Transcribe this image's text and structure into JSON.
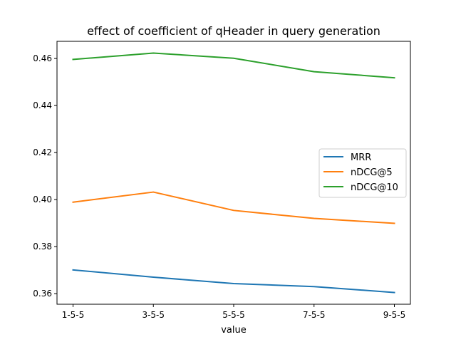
{
  "chart_data": {
    "type": "line",
    "title": "effect of coefficient of qHeader in query generation",
    "xlabel": "value",
    "ylabel": "",
    "categories": [
      "1-5-5",
      "3-5-5",
      "5-5-5",
      "7-5-5",
      "9-5-5"
    ],
    "ylim": [
      0.3555,
      0.4673
    ],
    "yticks": [
      0.36,
      0.38,
      0.4,
      0.42,
      0.44,
      0.46
    ],
    "ytick_labels": [
      "0.36",
      "0.38",
      "0.40",
      "0.42",
      "0.44",
      "0.46"
    ],
    "grid": false,
    "legend_position": "center-right",
    "series": [
      {
        "name": "MRR",
        "color": "#1f77b4",
        "values": [
          0.3701,
          0.367,
          0.3643,
          0.363,
          0.3605
        ]
      },
      {
        "name": "nDCG@5",
        "color": "#ff7f0e",
        "values": [
          0.3989,
          0.4032,
          0.3954,
          0.392,
          0.3899
        ]
      },
      {
        "name": "nDCG@10",
        "color": "#2ca02c",
        "values": [
          0.4596,
          0.4623,
          0.4601,
          0.4544,
          0.4518
        ]
      }
    ]
  }
}
